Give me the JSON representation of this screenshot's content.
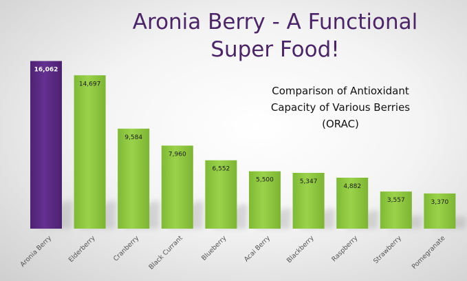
{
  "chart_data": {
    "type": "bar",
    "title": "Aronia Berry - A Functional Super Food!",
    "subtitle": "Comparison of Antioxidant Capacity of Various Berries (ORAC)",
    "categories": [
      "Aronia Berry",
      "Elderberry",
      "Cranberry",
      "Black Currant",
      "Blueberry",
      "Acai Berry",
      "Blackberry",
      "Raspberry",
      "Strawberry",
      "Pomegranate"
    ],
    "values": [
      16062,
      14697,
      9584,
      7960,
      6552,
      5500,
      5347,
      4882,
      3557,
      3370
    ],
    "data_labels": [
      "16,062",
      "14,697",
      "9,584",
      "7,960",
      "6,552",
      "5,500",
      "5,347",
      "4,882",
      "3,557",
      "3,370"
    ],
    "highlight_index": 0,
    "colors": {
      "highlight": "#5a2a82",
      "default": "#8cc63f",
      "title": "#4b2567"
    },
    "ylim": [
      0,
      16500
    ],
    "grid": false,
    "axes_visible": false
  }
}
